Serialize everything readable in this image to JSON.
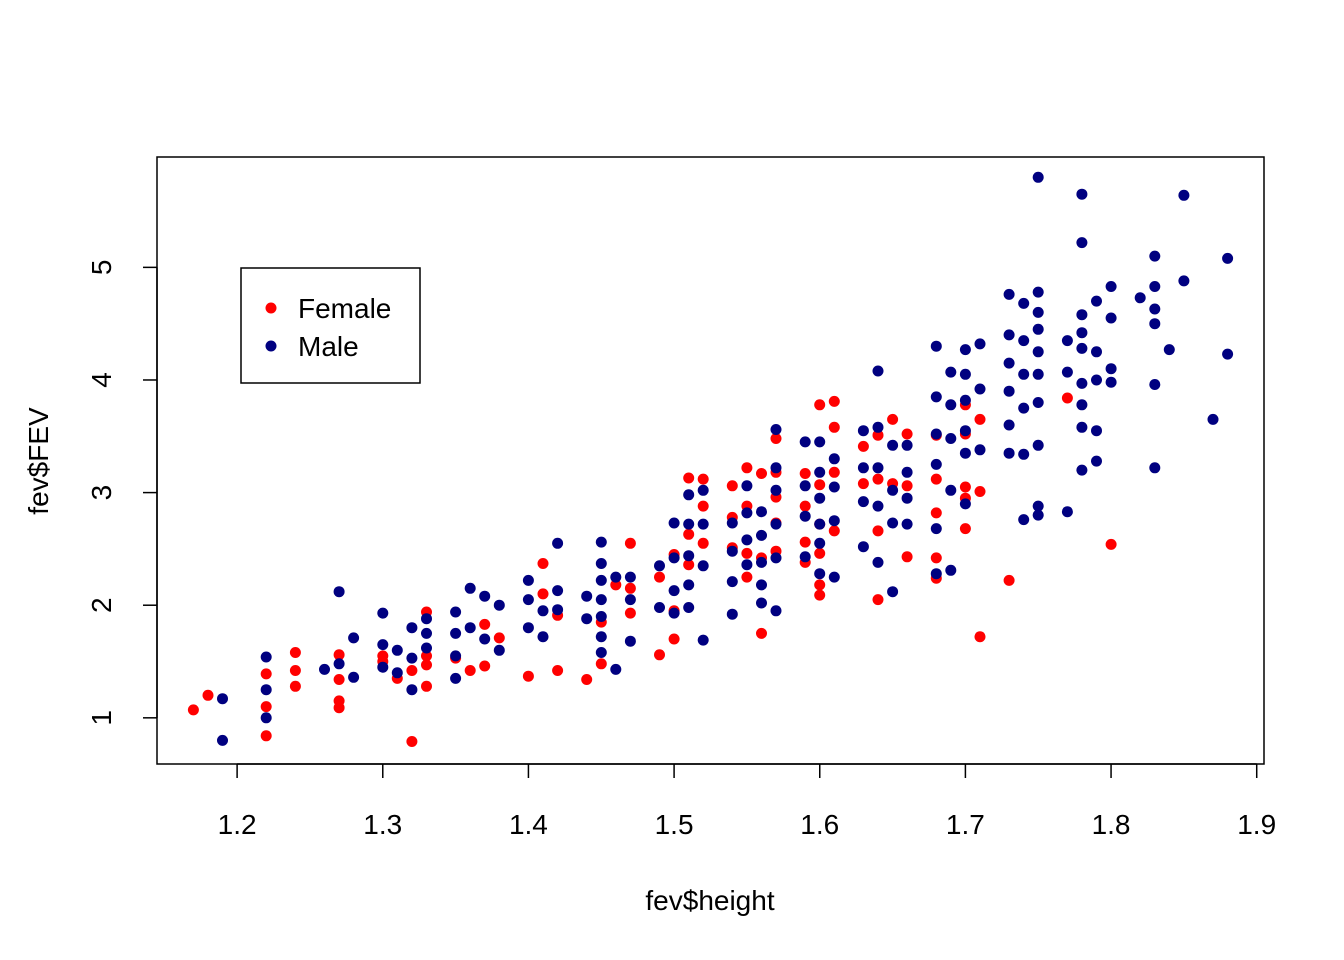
{
  "chart_data": {
    "type": "scatter",
    "title": "",
    "xlabel": "fev$height",
    "ylabel": "fev$FEV",
    "xlim": [
      1.145,
      1.905
    ],
    "ylim": [
      0.59,
      5.98
    ],
    "xticks": [
      1.2,
      1.3,
      1.4,
      1.5,
      1.6,
      1.7,
      1.8,
      1.9
    ],
    "xtick_labels": [
      "1.2",
      "1.3",
      "1.4",
      "1.5",
      "1.6",
      "1.7",
      "1.8",
      "1.9"
    ],
    "yticks": [
      1,
      2,
      3,
      4,
      5
    ],
    "ytick_labels": [
      "1",
      "2",
      "3",
      "4",
      "5"
    ],
    "grid": false,
    "legend": {
      "placement": "top-left",
      "entries": [
        {
          "label": "Female",
          "color": "#ff0000"
        },
        {
          "label": "Male",
          "color": "#000080"
        }
      ]
    },
    "series": [
      {
        "name": "Female",
        "color": "#ff0000",
        "x": [
          1.17,
          1.18,
          1.22,
          1.22,
          1.22,
          1.24,
          1.24,
          1.24,
          1.27,
          1.27,
          1.27,
          1.27,
          1.3,
          1.3,
          1.31,
          1.32,
          1.32,
          1.33,
          1.33,
          1.33,
          1.33,
          1.35,
          1.36,
          1.37,
          1.37,
          1.38,
          1.4,
          1.41,
          1.41,
          1.42,
          1.42,
          1.44,
          1.45,
          1.45,
          1.46,
          1.47,
          1.47,
          1.47,
          1.49,
          1.49,
          1.5,
          1.5,
          1.5,
          1.51,
          1.51,
          1.51,
          1.52,
          1.52,
          1.52,
          1.54,
          1.54,
          1.54,
          1.55,
          1.55,
          1.55,
          1.55,
          1.56,
          1.56,
          1.56,
          1.57,
          1.57,
          1.57,
          1.57,
          1.57,
          1.59,
          1.59,
          1.59,
          1.59,
          1.6,
          1.6,
          1.6,
          1.6,
          1.6,
          1.6,
          1.61,
          1.61,
          1.61,
          1.61,
          1.63,
          1.63,
          1.64,
          1.64,
          1.64,
          1.64,
          1.65,
          1.65,
          1.66,
          1.66,
          1.66,
          1.68,
          1.68,
          1.68,
          1.68,
          1.68,
          1.7,
          1.7,
          1.7,
          1.7,
          1.7,
          1.71,
          1.71,
          1.71,
          1.73,
          1.77,
          1.8
        ],
        "y": [
          1.07,
          1.2,
          1.39,
          1.1,
          0.84,
          1.58,
          1.42,
          1.28,
          1.56,
          1.34,
          1.15,
          1.09,
          1.55,
          1.5,
          1.35,
          1.42,
          0.79,
          1.94,
          1.55,
          1.28,
          1.47,
          1.53,
          1.42,
          1.83,
          1.46,
          1.71,
          1.37,
          2.37,
          2.1,
          1.42,
          1.91,
          1.34,
          1.85,
          1.48,
          2.18,
          2.55,
          2.15,
          1.93,
          2.25,
          1.56,
          2.45,
          1.95,
          1.7,
          3.13,
          2.63,
          2.36,
          3.12,
          2.88,
          2.55,
          3.06,
          2.78,
          2.51,
          3.22,
          2.88,
          2.46,
          2.25,
          3.17,
          2.42,
          1.75,
          3.48,
          3.18,
          2.96,
          2.73,
          2.48,
          3.17,
          2.88,
          2.56,
          2.38,
          3.78,
          3.07,
          2.72,
          2.46,
          2.18,
          2.09,
          3.81,
          3.58,
          3.18,
          2.66,
          3.41,
          3.08,
          3.51,
          3.12,
          2.66,
          2.05,
          3.65,
          3.08,
          3.52,
          3.06,
          2.43,
          3.51,
          3.12,
          2.82,
          2.42,
          2.24,
          3.78,
          3.52,
          3.05,
          2.95,
          2.68,
          3.65,
          3.01,
          1.72,
          2.22,
          3.84,
          2.54
        ]
      },
      {
        "name": "Male",
        "color": "#000080",
        "x": [
          1.19,
          1.19,
          1.22,
          1.22,
          1.22,
          1.26,
          1.27,
          1.27,
          1.28,
          1.28,
          1.3,
          1.3,
          1.3,
          1.31,
          1.31,
          1.32,
          1.32,
          1.32,
          1.33,
          1.33,
          1.33,
          1.35,
          1.35,
          1.35,
          1.35,
          1.36,
          1.36,
          1.37,
          1.37,
          1.38,
          1.38,
          1.4,
          1.4,
          1.4,
          1.41,
          1.41,
          1.42,
          1.42,
          1.42,
          1.44,
          1.44,
          1.45,
          1.45,
          1.45,
          1.45,
          1.45,
          1.45,
          1.45,
          1.46,
          1.46,
          1.47,
          1.47,
          1.47,
          1.49,
          1.49,
          1.5,
          1.5,
          1.5,
          1.5,
          1.51,
          1.51,
          1.51,
          1.51,
          1.51,
          1.52,
          1.52,
          1.52,
          1.52,
          1.54,
          1.54,
          1.54,
          1.54,
          1.55,
          1.55,
          1.55,
          1.55,
          1.56,
          1.56,
          1.56,
          1.56,
          1.56,
          1.57,
          1.57,
          1.57,
          1.57,
          1.57,
          1.57,
          1.59,
          1.59,
          1.59,
          1.59,
          1.6,
          1.6,
          1.6,
          1.6,
          1.6,
          1.6,
          1.61,
          1.61,
          1.61,
          1.61,
          1.63,
          1.63,
          1.63,
          1.63,
          1.64,
          1.64,
          1.64,
          1.64,
          1.64,
          1.65,
          1.65,
          1.65,
          1.65,
          1.66,
          1.66,
          1.66,
          1.66,
          1.68,
          1.68,
          1.68,
          1.68,
          1.68,
          1.68,
          1.69,
          1.69,
          1.69,
          1.69,
          1.69,
          1.7,
          1.7,
          1.7,
          1.7,
          1.7,
          1.7,
          1.71,
          1.71,
          1.71,
          1.73,
          1.73,
          1.73,
          1.73,
          1.73,
          1.73,
          1.74,
          1.74,
          1.74,
          1.74,
          1.74,
          1.74,
          1.75,
          1.75,
          1.75,
          1.75,
          1.75,
          1.75,
          1.75,
          1.75,
          1.75,
          1.75,
          1.77,
          1.77,
          1.77,
          1.78,
          1.78,
          1.78,
          1.78,
          1.78,
          1.78,
          1.78,
          1.78,
          1.78,
          1.79,
          1.79,
          1.79,
          1.79,
          1.79,
          1.8,
          1.8,
          1.8,
          1.8,
          1.82,
          1.83,
          1.83,
          1.83,
          1.83,
          1.83,
          1.83,
          1.84,
          1.85,
          1.85,
          1.87,
          1.88,
          1.88
        ],
        "y": [
          1.17,
          0.8,
          1.54,
          1.25,
          1.0,
          1.43,
          2.12,
          1.48,
          1.71,
          1.36,
          1.93,
          1.65,
          1.45,
          1.6,
          1.4,
          1.8,
          1.53,
          1.25,
          1.88,
          1.62,
          1.75,
          1.94,
          1.75,
          1.55,
          1.35,
          2.15,
          1.8,
          2.08,
          1.7,
          2.0,
          1.6,
          2.22,
          2.05,
          1.8,
          1.95,
          1.72,
          2.55,
          2.13,
          1.96,
          2.08,
          1.88,
          2.56,
          2.37,
          2.22,
          2.05,
          1.9,
          1.72,
          1.58,
          2.25,
          1.43,
          2.25,
          2.05,
          1.68,
          2.35,
          1.98,
          2.73,
          2.42,
          2.13,
          1.93,
          2.98,
          2.72,
          2.44,
          2.18,
          1.98,
          3.02,
          2.72,
          2.35,
          1.69,
          2.73,
          2.48,
          2.21,
          1.92,
          3.06,
          2.82,
          2.58,
          2.36,
          2.83,
          2.62,
          2.38,
          2.18,
          2.02,
          3.56,
          3.22,
          3.02,
          2.72,
          2.42,
          1.95,
          3.45,
          3.06,
          2.79,
          2.43,
          3.45,
          3.18,
          2.95,
          2.72,
          2.28,
          2.55,
          3.3,
          3.05,
          2.75,
          2.25,
          3.55,
          3.22,
          2.92,
          2.52,
          4.08,
          3.58,
          3.22,
          2.88,
          2.38,
          3.42,
          3.02,
          2.73,
          2.12,
          3.42,
          3.18,
          2.95,
          2.72,
          4.3,
          3.85,
          3.52,
          3.25,
          2.68,
          2.28,
          4.07,
          3.78,
          3.48,
          3.02,
          2.31,
          4.27,
          4.05,
          3.82,
          3.55,
          3.35,
          2.9,
          4.32,
          3.92,
          3.38,
          4.76,
          4.4,
          4.15,
          3.9,
          3.6,
          3.35,
          4.68,
          4.35,
          4.05,
          3.75,
          3.34,
          2.76,
          5.8,
          4.78,
          4.6,
          4.45,
          4.25,
          4.05,
          3.8,
          3.42,
          2.88,
          2.8,
          4.35,
          4.07,
          2.83,
          5.65,
          5.22,
          4.58,
          4.42,
          4.28,
          3.97,
          3.78,
          3.58,
          3.2,
          4.7,
          4.25,
          3.55,
          3.28,
          4.0,
          4.83,
          4.55,
          4.1,
          3.98,
          4.73,
          5.1,
          4.83,
          4.63,
          4.5,
          3.96,
          3.22,
          4.27,
          5.64,
          4.88,
          3.65,
          5.08,
          4.23
        ]
      }
    ]
  }
}
